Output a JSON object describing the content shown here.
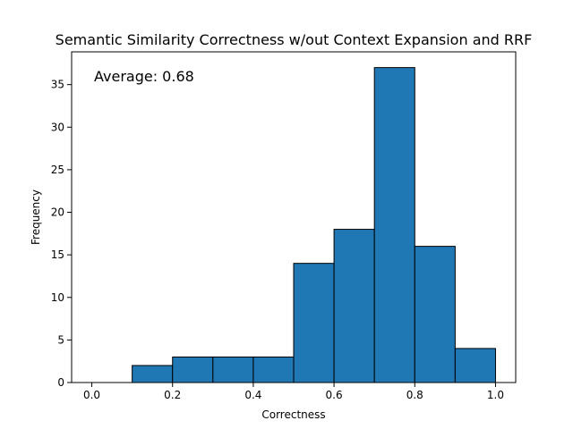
{
  "chart_data": {
    "type": "bar",
    "subtype": "histogram",
    "title": "Semantic Similarity Correctness w/out Context Expansion and RRF",
    "xlabel": "Correctness",
    "ylabel": "Frequency",
    "annotation": "Average: 0.68",
    "bin_edges": [
      0.0,
      0.1,
      0.2,
      0.3,
      0.4,
      0.5,
      0.6,
      0.7,
      0.8,
      0.9,
      1.0
    ],
    "values": [
      0,
      2,
      3,
      3,
      3,
      14,
      18,
      37,
      16,
      4
    ],
    "xlim": [
      -0.05,
      1.05
    ],
    "ylim": [
      0,
      38.85
    ],
    "xticks": [
      0.0,
      0.2,
      0.4,
      0.6,
      0.8,
      1.0
    ],
    "xtick_labels": [
      "0.0",
      "0.2",
      "0.4",
      "0.6",
      "0.8",
      "1.0"
    ],
    "yticks": [
      0,
      5,
      10,
      15,
      20,
      25,
      30,
      35
    ],
    "ytick_labels": [
      "0",
      "5",
      "10",
      "15",
      "20",
      "25",
      "30",
      "35"
    ],
    "bar_color": "#1f77b4",
    "edge_color": "#000000",
    "grid": false,
    "legend": "none"
  }
}
